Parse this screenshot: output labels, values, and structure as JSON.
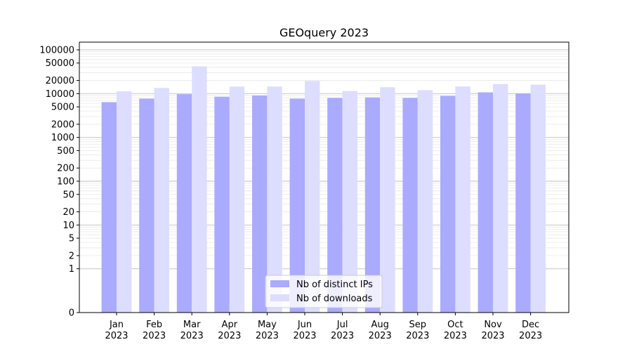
{
  "chart_data": {
    "type": "bar",
    "title": "GEOquery 2023",
    "xlabel": "",
    "ylabel": "",
    "yscale": "symlog",
    "ylim": [
      0,
      150000
    ],
    "y_ticks": [
      "0",
      "1",
      "2",
      "5",
      "10",
      "20",
      "50",
      "100",
      "200",
      "500",
      "1000",
      "2000",
      "5000",
      "10000",
      "20000",
      "50000",
      "100000"
    ],
    "y_tick_values": [
      0,
      1,
      2,
      5,
      10,
      20,
      50,
      100,
      200,
      500,
      1000,
      2000,
      5000,
      10000,
      20000,
      50000,
      100000
    ],
    "categories": [
      "Jan",
      "Feb",
      "Mar",
      "Apr",
      "May",
      "Jun",
      "Jul",
      "Aug",
      "Sep",
      "Oct",
      "Nov",
      "Dec"
    ],
    "category_year": "2023",
    "grid": true,
    "legend_position": "bottom-center",
    "series": [
      {
        "name": "Nb of distinct IPs",
        "color": "#aaaaff",
        "values": [
          6400,
          7700,
          9700,
          8500,
          9100,
          7700,
          8000,
          8200,
          8000,
          8900,
          10700,
          10100
        ]
      },
      {
        "name": "Nb of downloads",
        "color": "#ddddff",
        "values": [
          11300,
          13500,
          42000,
          14500,
          14500,
          19500,
          11500,
          14000,
          12000,
          14600,
          16500,
          16000
        ]
      }
    ]
  }
}
